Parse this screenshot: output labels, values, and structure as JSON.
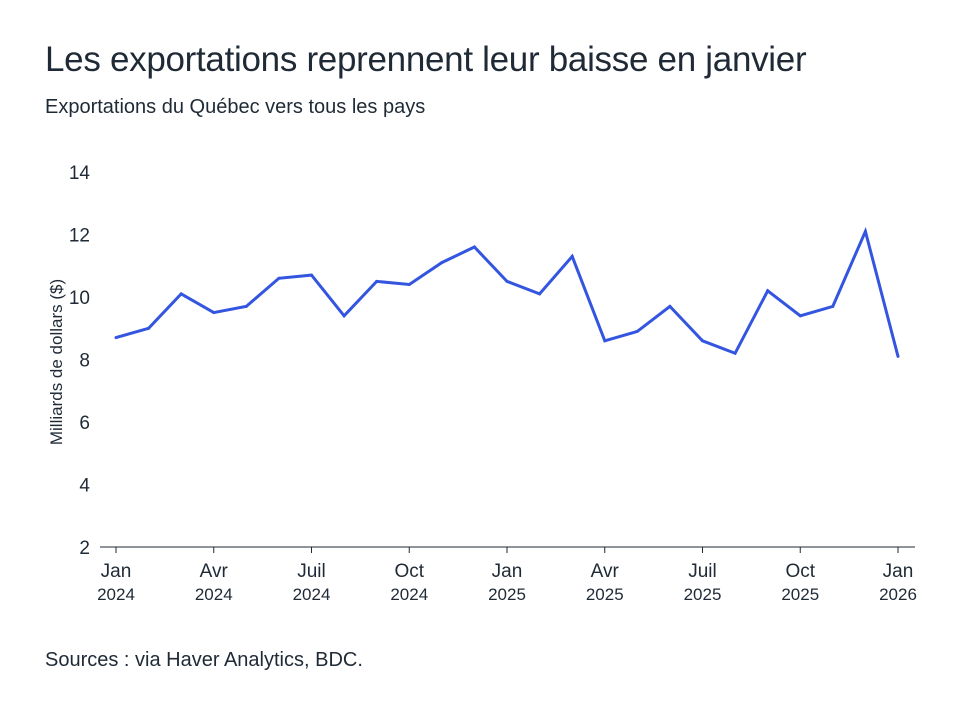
{
  "chart_data": {
    "type": "line",
    "title": "Les exportations reprennent leur baisse en janvier",
    "subtitle": "Exportations du Québec vers tous les pays",
    "ylabel": "Milliards de dollars ($)",
    "xlabel": "",
    "ylim": [
      2,
      14
    ],
    "yticks": [
      2,
      4,
      6,
      8,
      10,
      12,
      14
    ],
    "grid": false,
    "x": [
      "2024-01",
      "2024-02",
      "2024-03",
      "2024-04",
      "2024-05",
      "2024-06",
      "2024-07",
      "2024-08",
      "2024-09",
      "2024-10",
      "2024-11",
      "2024-12",
      "2025-01",
      "2025-02",
      "2025-03",
      "2025-04",
      "2025-05",
      "2025-06",
      "2025-07",
      "2025-08",
      "2025-09",
      "2025-10",
      "2025-11",
      "2025-12",
      "2026-01"
    ],
    "series": [
      {
        "name": "Exportations",
        "color": "#3355e0",
        "values": [
          8.7,
          9.0,
          10.1,
          9.5,
          9.7,
          10.6,
          10.7,
          9.4,
          10.5,
          10.4,
          11.1,
          11.6,
          10.5,
          10.1,
          11.3,
          8.6,
          8.9,
          9.7,
          8.6,
          8.2,
          10.2,
          9.4,
          9.7,
          12.1,
          8.1
        ]
      }
    ],
    "xticks": [
      {
        "month_index": 0,
        "label": "Jan",
        "year": "2024"
      },
      {
        "month_index": 3,
        "label": "Avr",
        "year": "2024"
      },
      {
        "month_index": 6,
        "label": "Juil",
        "year": "2024"
      },
      {
        "month_index": 9,
        "label": "Oct",
        "year": "2024"
      },
      {
        "month_index": 12,
        "label": "Jan",
        "year": "2025"
      },
      {
        "month_index": 15,
        "label": "Avr",
        "year": "2025"
      },
      {
        "month_index": 18,
        "label": "Juil",
        "year": "2025"
      },
      {
        "month_index": 21,
        "label": "Oct",
        "year": "2025"
      },
      {
        "month_index": 24,
        "label": "Jan",
        "year": "2026"
      }
    ]
  },
  "source": "Sources : via Haver Analytics, BDC."
}
